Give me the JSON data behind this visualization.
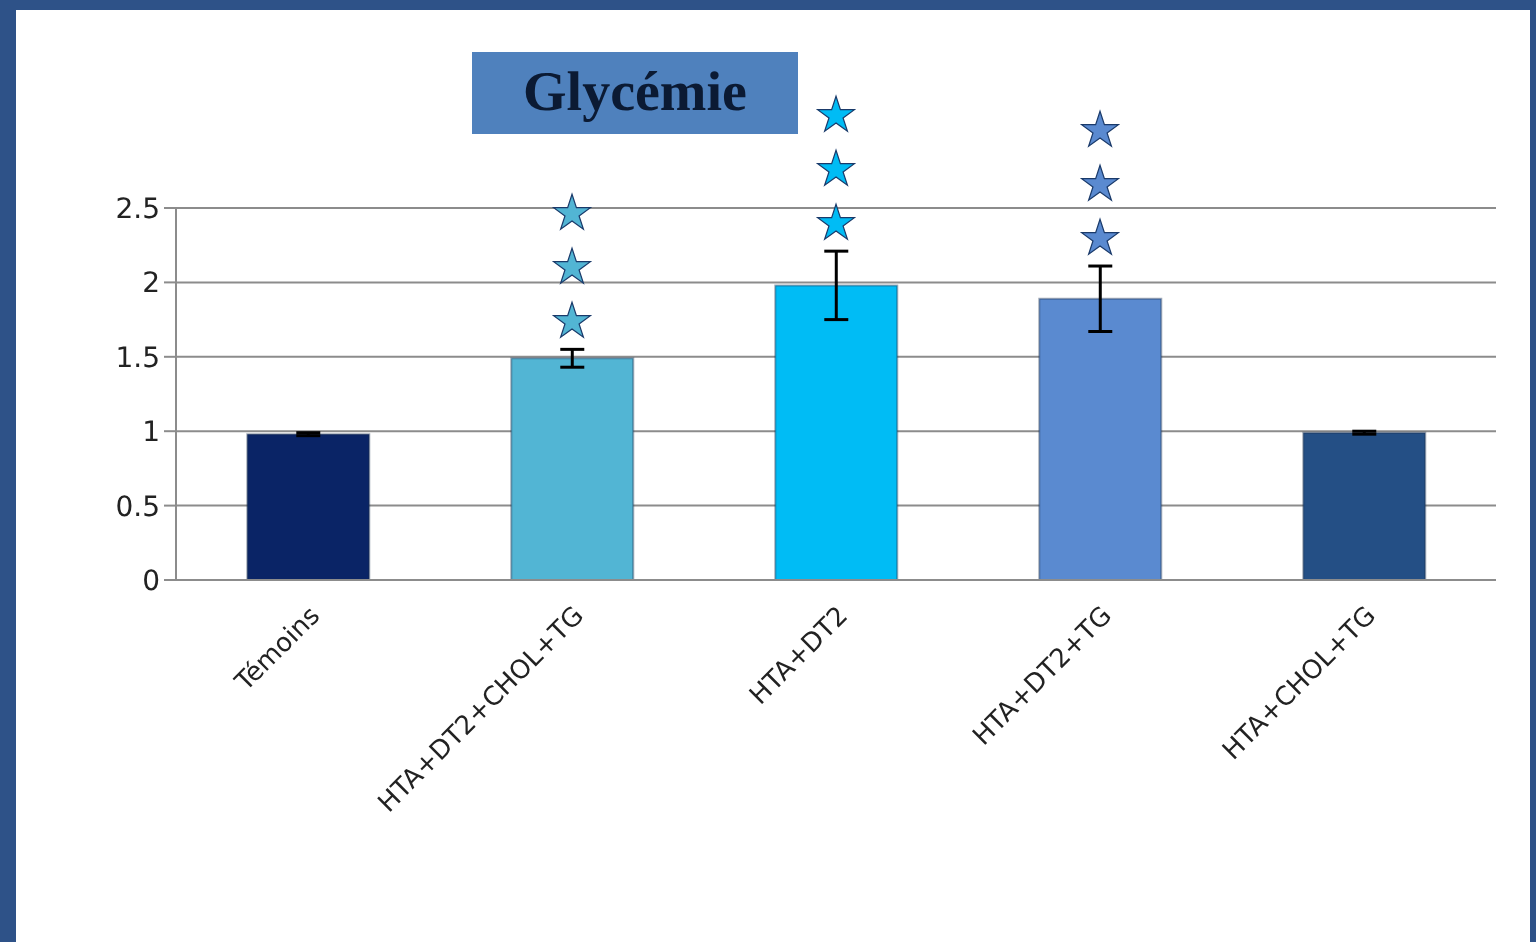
{
  "chart_data": {
    "type": "bar",
    "title": "Glycémie",
    "categories": [
      "Témoins",
      "HTA+DT2+CHOL+TG",
      "HTA+DT2",
      "HTA+DT2+TG",
      "HTA+CHOL+TG"
    ],
    "values": [
      0.98,
      1.49,
      1.98,
      1.89,
      0.99
    ],
    "errors": [
      0.01,
      0.06,
      0.23,
      0.22,
      0.01
    ],
    "colors": [
      "#0a2466",
      "#52b5d4",
      "#00bcf5",
      "#5a8ad0",
      "#244f85"
    ],
    "ylim": [
      0,
      2.5
    ],
    "yticks": [
      0,
      0.5,
      1,
      1.5,
      2,
      2.5
    ],
    "grid": "y",
    "annotations": [
      {
        "text": "★★★",
        "x": "HTA+DT2+CHOL+TG",
        "y": 1.55
      },
      {
        "text": "★★★",
        "x": "HTA+DT2",
        "y": 2.21
      },
      {
        "text": "★★★",
        "x": "HTA+DT2+TG",
        "y": 2.11
      }
    ]
  }
}
